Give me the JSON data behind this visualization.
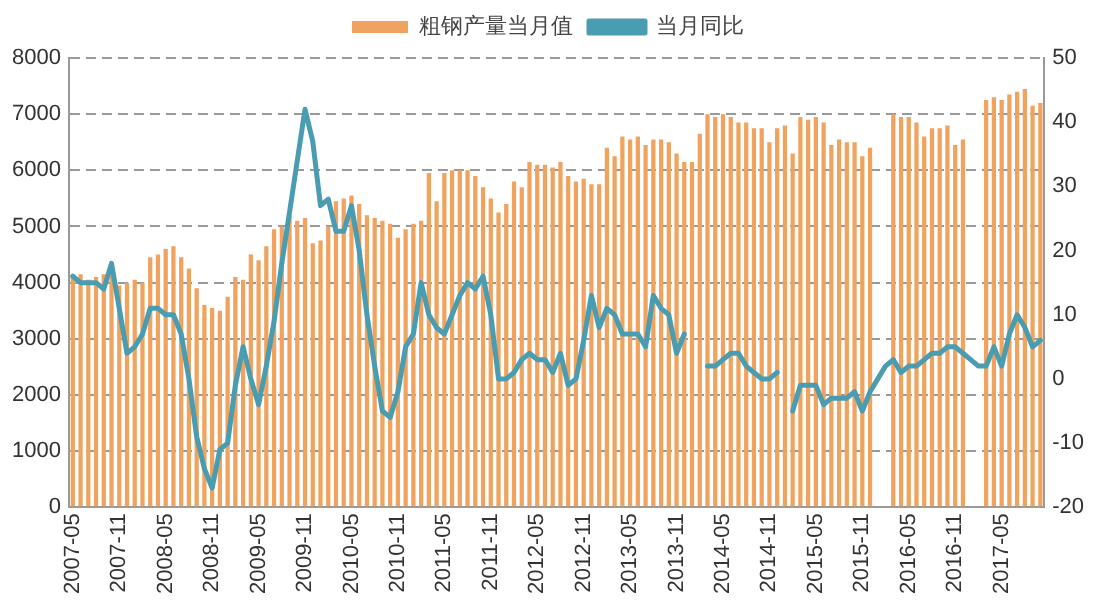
{
  "chart_data": {
    "type": "bar",
    "categories": [
      "2007-05",
      null,
      null,
      null,
      null,
      null,
      "2007-11",
      null,
      null,
      null,
      null,
      null,
      "2008-05",
      null,
      null,
      null,
      null,
      null,
      "2008-11",
      null,
      null,
      null,
      null,
      null,
      "2009-05",
      null,
      null,
      null,
      null,
      null,
      "2009-11",
      null,
      null,
      null,
      null,
      null,
      "2010-05",
      null,
      null,
      null,
      null,
      null,
      "2010-11",
      null,
      null,
      null,
      null,
      null,
      "2011-05",
      null,
      null,
      null,
      null,
      null,
      "2011-11",
      null,
      null,
      null,
      null,
      null,
      "2012-05",
      null,
      null,
      null,
      null,
      null,
      "2012-11",
      null,
      null,
      null,
      null,
      null,
      "2013-05",
      null,
      null,
      null,
      null,
      null,
      "2013-11",
      null,
      null,
      null,
      null,
      null,
      "2014-05",
      null,
      null,
      null,
      null,
      null,
      "2014-11",
      null,
      null,
      null,
      null,
      null,
      "2015-05",
      null,
      null,
      null,
      null,
      null,
      "2015-11",
      null,
      null,
      null,
      null,
      null,
      "2016-05",
      null,
      null,
      null,
      null,
      null,
      "2016-11",
      null,
      null,
      null,
      null,
      null,
      "2017-05",
      null,
      null,
      null,
      null,
      null
    ],
    "series": [
      {
        "name": "粗钢产量当月值",
        "color": "#f0a35e",
        "values": [
          4100,
          4150,
          4050,
          4100,
          4150,
          4250,
          3950,
          4000,
          4050,
          4000,
          4450,
          4500,
          4600,
          4650,
          4450,
          4250,
          3900,
          3600,
          3550,
          3500,
          3750,
          4100,
          4050,
          4500,
          4400,
          4650,
          4950,
          5000,
          5200,
          5100,
          5150,
          4700,
          4750,
          5000,
          5450,
          5500,
          5550,
          5400,
          5200,
          5150,
          5100,
          5050,
          4800,
          4950,
          5050,
          5100,
          5950,
          5450,
          5950,
          6000,
          6000,
          6000,
          5900,
          5700,
          5500,
          5250,
          5400,
          5800,
          5700,
          6150,
          6100,
          6100,
          6050,
          6150,
          5900,
          5800,
          5850,
          5750,
          5750,
          6400,
          6250,
          6600,
          6550,
          6600,
          6450,
          6550,
          6550,
          6500,
          6300,
          6150,
          6150,
          6650,
          7000,
          6950,
          7000,
          6950,
          6850,
          6850,
          6750,
          6750,
          6500,
          6750,
          6800,
          6300,
          6950,
          6900,
          6950,
          6850,
          6450,
          6550,
          6500,
          6500,
          6250,
          6400,
          null,
          null,
          7000,
          6950,
          6950,
          6850,
          6600,
          6750,
          6750,
          6800,
          6450,
          6550,
          null,
          null,
          7250,
          7300,
          7250,
          7350,
          7400,
          7450,
          7150,
          7200
        ]
      },
      {
        "name": "当月同比",
        "type": "line",
        "axis": "y2",
        "color": "#4a9cb0",
        "values": [
          16,
          15,
          15,
          15,
          14,
          18,
          11,
          4,
          5,
          7,
          11,
          11,
          10,
          10,
          7,
          0,
          -9,
          -14,
          -17,
          -11,
          -10,
          -1,
          5,
          0,
          -4,
          2,
          9,
          18,
          26,
          34,
          42,
          37,
          27,
          28,
          23,
          23,
          27,
          20,
          10,
          2,
          -5,
          -6,
          -2,
          5,
          7,
          15,
          10,
          8,
          7,
          10,
          13,
          15,
          14,
          16,
          10,
          0,
          0,
          1,
          3,
          4,
          3,
          3,
          1,
          4,
          -1,
          0,
          6,
          13,
          8,
          11,
          10,
          7,
          7,
          7,
          5,
          13,
          11,
          10,
          4,
          7,
          null,
          null,
          2,
          2,
          3,
          4,
          4,
          2,
          1,
          0,
          0,
          1,
          null,
          -5,
          -1,
          -1,
          -1,
          -4,
          -3,
          -3,
          -3,
          -2,
          -5,
          -2,
          0,
          2,
          3,
          1,
          2,
          2,
          3,
          4,
          4,
          5,
          5,
          4,
          3,
          2,
          2,
          5,
          2,
          7,
          10,
          8,
          5,
          6
        ]
      }
    ],
    "ylim": [
      0,
      8000
    ],
    "yticks": [
      0,
      1000,
      2000,
      3000,
      4000,
      5000,
      6000,
      7000,
      8000
    ],
    "y2lim": [
      -20,
      50
    ],
    "y2ticks": [
      -20,
      -10,
      0,
      10,
      20,
      30,
      40,
      50
    ],
    "grid": "y",
    "legend": "top",
    "marker": "none",
    "line_style": "solid"
  }
}
